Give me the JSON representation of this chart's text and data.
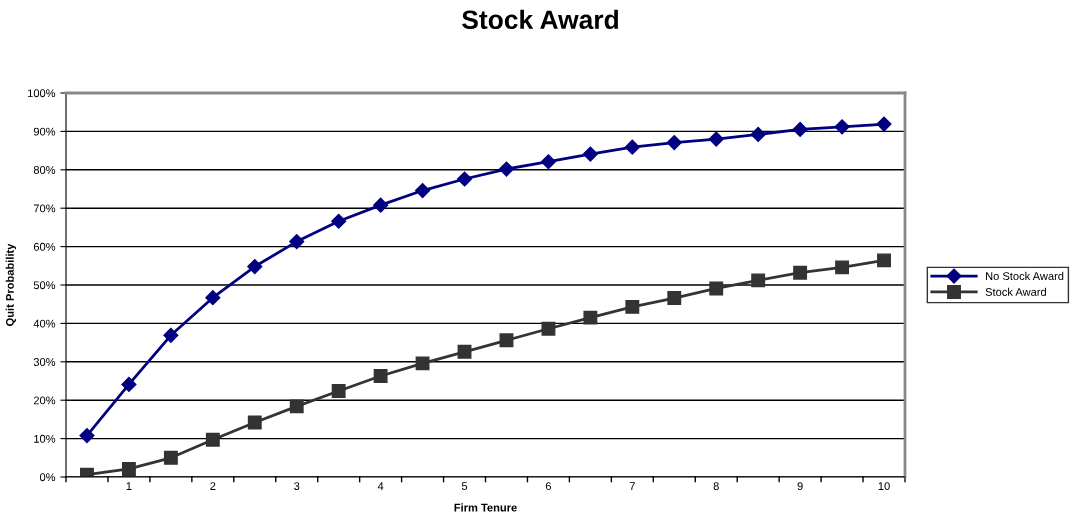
{
  "chart_data": {
    "type": "line",
    "title": "Stock Award",
    "xlabel": "Firm Tenure",
    "ylabel": "Quit Probability",
    "categories": [
      null,
      "1",
      null,
      "2",
      null,
      "3",
      null,
      "4",
      null,
      "5",
      null,
      "6",
      null,
      "7",
      null,
      "8",
      null,
      "9",
      null,
      "10"
    ],
    "series": [
      {
        "name": "No Stock Award",
        "color": "#000080",
        "marker": "diamond",
        "values": [
          10.8,
          24.1,
          36.9,
          46.7,
          54.8,
          61.3,
          66.6,
          70.8,
          74.6,
          77.6,
          80.2,
          82.1,
          84.1,
          85.9,
          87.1,
          88.0,
          89.2,
          90.5,
          91.2,
          91.9
        ]
      },
      {
        "name": "Stock Award",
        "color": "#333333",
        "marker": "square",
        "values": [
          0.6,
          2.1,
          5.0,
          9.7,
          14.2,
          18.4,
          22.4,
          26.3,
          29.6,
          32.6,
          35.6,
          38.6,
          41.5,
          44.3,
          46.6,
          49.1,
          51.2,
          53.2,
          54.6,
          56.4
        ]
      }
    ],
    "ylim": [
      0,
      100
    ],
    "yticks": [
      {
        "value": 0,
        "label": "0%"
      },
      {
        "value": 10,
        "label": "10%"
      },
      {
        "value": 20,
        "label": "20%"
      },
      {
        "value": 30,
        "label": "30%"
      },
      {
        "value": 40,
        "label": "40%"
      },
      {
        "value": 50,
        "label": "50%"
      },
      {
        "value": 60,
        "label": "60%"
      },
      {
        "value": 70,
        "label": "70%"
      },
      {
        "value": 80,
        "label": "80%"
      },
      {
        "value": 90,
        "label": "90%"
      },
      {
        "value": 100,
        "label": "100%"
      }
    ],
    "grid": "y",
    "legend": "right",
    "line_style": "solid"
  }
}
